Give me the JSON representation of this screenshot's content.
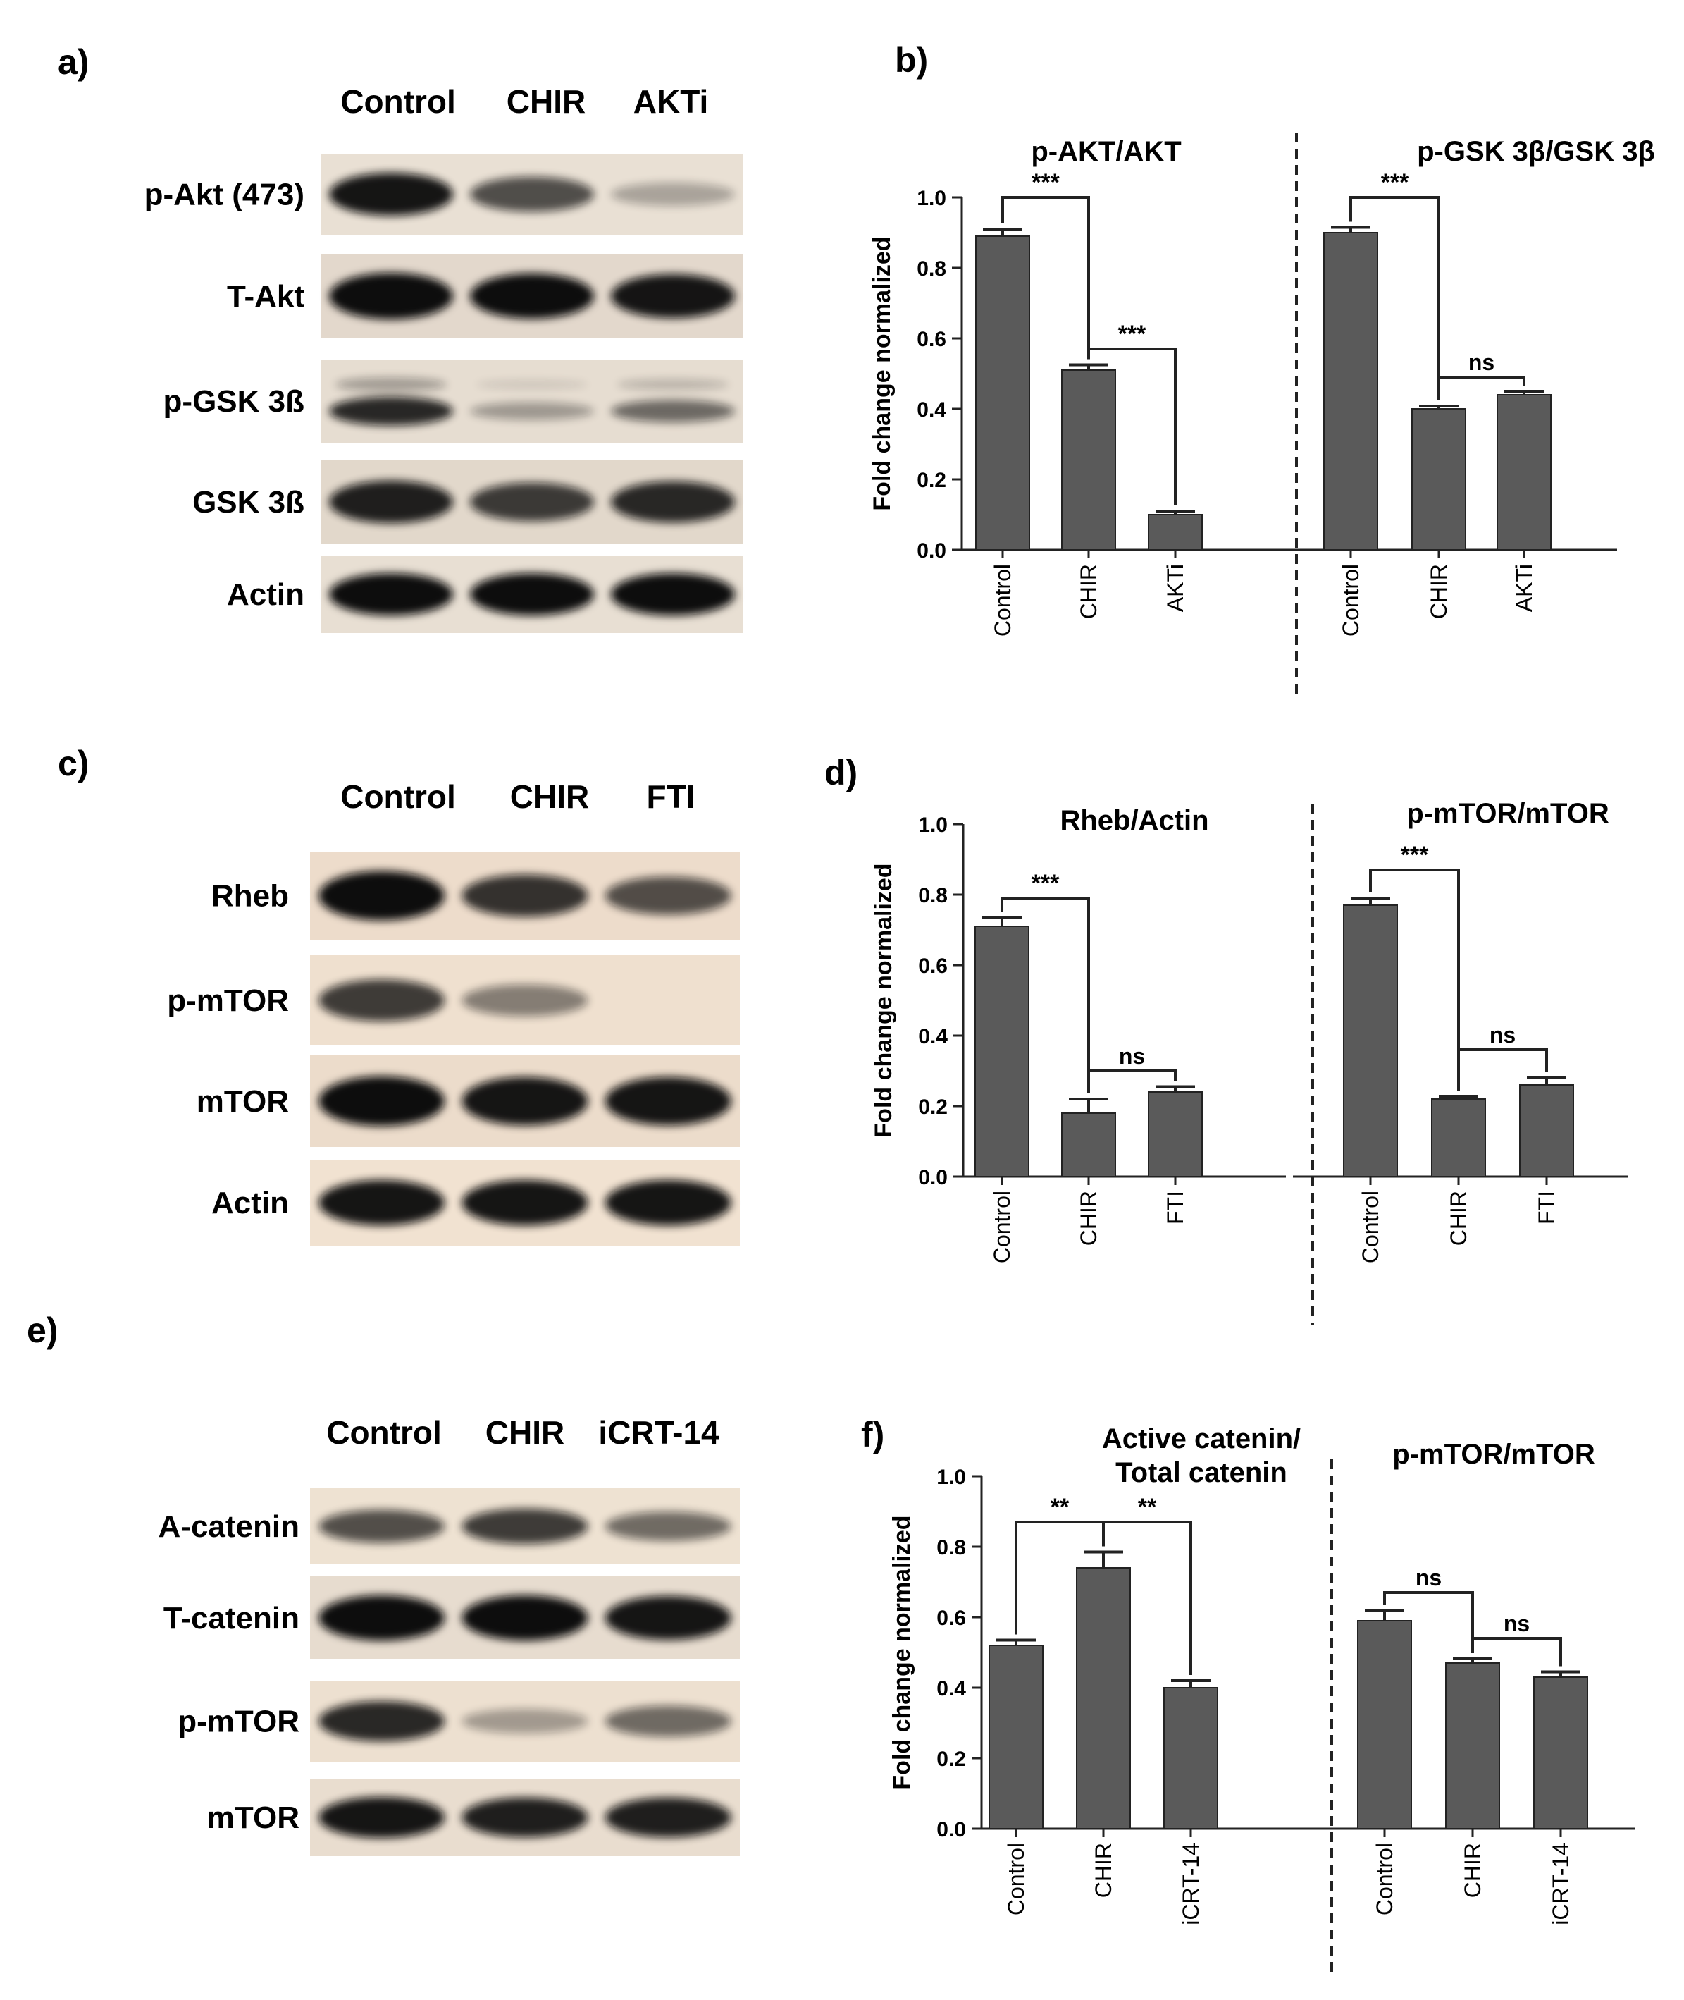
{
  "figure": {
    "blots": [
      {
        "panel_letter": "a)",
        "lane_labels": [
          "Control",
          "CHIR",
          "AKTi"
        ],
        "bands": [
          {
            "label": "p-Akt (473)",
            "intensities": [
              0.9,
              0.6,
              0.15
            ],
            "bg": "#e9e0d4",
            "double": false
          },
          {
            "label": "T-Akt",
            "intensities": [
              1.0,
              0.95,
              0.9
            ],
            "bg": "#e3d8cc",
            "double": false
          },
          {
            "label": "p-GSK 3ß",
            "intensities": [
              0.8,
              0.2,
              0.45
            ],
            "bg": "#e6ddd1",
            "double": true
          },
          {
            "label": "GSK 3ß",
            "intensities": [
              0.85,
              0.7,
              0.8
            ],
            "bg": "#e2d8cb",
            "double": false
          },
          {
            "label": "Actin",
            "intensities": [
              0.95,
              0.95,
              0.95
            ],
            "bg": "#e8dfd3",
            "double": false
          }
        ]
      },
      {
        "panel_letter": "c)",
        "lane_labels": [
          "Control",
          "CHIR",
          "FTI"
        ],
        "bands": [
          {
            "label": "Rheb",
            "intensities": [
              1.0,
              0.75,
              0.6
            ],
            "bg": "#eddccb",
            "double": false
          },
          {
            "label": "p-mTOR",
            "intensities": [
              0.7,
              0.35,
              0.0
            ],
            "bg": "#efe0cf",
            "double": false
          },
          {
            "label": "mTOR",
            "intensities": [
              0.95,
              0.9,
              0.9
            ],
            "bg": "#ecdccb",
            "double": false
          },
          {
            "label": "Actin",
            "intensities": [
              0.9,
              0.9,
              0.9
            ],
            "bg": "#f1e2d1",
            "double": false
          }
        ]
      },
      {
        "panel_letter": "e)",
        "lane_labels": [
          "Control",
          "CHIR",
          "iCRT-14"
        ],
        "bands": [
          {
            "label": "A-catenin",
            "intensities": [
              0.6,
              0.7,
              0.45
            ],
            "bg": "#eee2d2",
            "double": false
          },
          {
            "label": "T-catenin",
            "intensities": [
              0.95,
              0.95,
              0.9
            ],
            "bg": "#e7dccf",
            "double": false
          },
          {
            "label": "p-mTOR",
            "intensities": [
              0.8,
              0.2,
              0.45
            ],
            "bg": "#ede0d0",
            "double": false
          },
          {
            "label": "mTOR",
            "intensities": [
              0.9,
              0.85,
              0.85
            ],
            "bg": "#e9ddcf",
            "double": false
          }
        ]
      }
    ],
    "bar_color": "#5a5a5a"
  },
  "chart_data": [
    {
      "type": "bar",
      "panel_letter": "b)",
      "ylabel": "Fold change normalized",
      "ylim": [
        0,
        1.0
      ],
      "yticks": [
        "0.0",
        "0.2",
        "0.4",
        "0.6",
        "0.8",
        "1.0"
      ],
      "groups": [
        {
          "title": "p-AKT/AKT",
          "categories": [
            "Control",
            "CHIR",
            "AKTi"
          ],
          "values": [
            0.89,
            0.51,
            0.1
          ],
          "errors": [
            0.02,
            0.015,
            0.01
          ],
          "brackets": [
            {
              "from": 0,
              "to": 1,
              "label": "***",
              "level": 1.0
            },
            {
              "from": 1,
              "to": 2,
              "label": "***",
              "level": 0.57
            }
          ]
        },
        {
          "title": "p-GSK 3β/GSK 3β",
          "categories": [
            "Control",
            "CHIR",
            "AKTi"
          ],
          "values": [
            0.9,
            0.4,
            0.44
          ],
          "errors": [
            0.015,
            0.008,
            0.01
          ],
          "brackets": [
            {
              "from": 0,
              "to": 1,
              "label": "***",
              "level": 1.0
            },
            {
              "from": 1,
              "to": 2,
              "label": "ns",
              "level": 0.49
            }
          ]
        }
      ]
    },
    {
      "type": "bar",
      "panel_letter": "d)",
      "ylabel": "Fold change normalized",
      "ylim": [
        0,
        1.0
      ],
      "yticks": [
        "0.0",
        "0.2",
        "0.4",
        "0.6",
        "0.8",
        "1.0"
      ],
      "groups": [
        {
          "title": "Rheb/Actin",
          "categories": [
            "Control",
            "CHIR",
            "FTI"
          ],
          "values": [
            0.71,
            0.18,
            0.24
          ],
          "errors": [
            0.025,
            0.04,
            0.015
          ],
          "brackets": [
            {
              "from": 0,
              "to": 1,
              "label": "***",
              "level": 0.79
            },
            {
              "from": 1,
              "to": 2,
              "label": "ns",
              "level": 0.3
            }
          ]
        },
        {
          "title": "p-mTOR/mTOR",
          "categories": [
            "Control",
            "CHIR",
            "FTI"
          ],
          "values": [
            0.77,
            0.22,
            0.26
          ],
          "errors": [
            0.02,
            0.008,
            0.02
          ],
          "brackets": [
            {
              "from": 0,
              "to": 1,
              "label": "***",
              "level": 0.87
            },
            {
              "from": 1,
              "to": 2,
              "label": "ns",
              "level": 0.36
            }
          ]
        }
      ]
    },
    {
      "type": "bar",
      "panel_letter": "f)",
      "ylabel": "Fold change normalized",
      "ylim": [
        0,
        1.0
      ],
      "yticks": [
        "0.0",
        "0.2",
        "0.4",
        "0.6",
        "0.8",
        "1.0"
      ],
      "groups": [
        {
          "title": "Active catenin/",
          "title2": "Total catenin",
          "categories": [
            "Control",
            "CHIR",
            "iCRT-14"
          ],
          "values": [
            0.52,
            0.74,
            0.4
          ],
          "errors": [
            0.015,
            0.045,
            0.02
          ],
          "brackets": [
            {
              "from": 0,
              "to": 1,
              "label": "**",
              "level": 0.87
            },
            {
              "from": 1,
              "to": 2,
              "label": "**",
              "level": 0.87
            }
          ]
        },
        {
          "title": "p-mTOR/mTOR",
          "categories": [
            "Control",
            "CHIR",
            "iCRT-14"
          ],
          "values": [
            0.59,
            0.47,
            0.43
          ],
          "errors": [
            0.03,
            0.012,
            0.015
          ],
          "brackets": [
            {
              "from": 0,
              "to": 1,
              "label": "ns",
              "level": 0.67
            },
            {
              "from": 1,
              "to": 2,
              "label": "ns",
              "level": 0.54
            }
          ]
        }
      ]
    }
  ]
}
